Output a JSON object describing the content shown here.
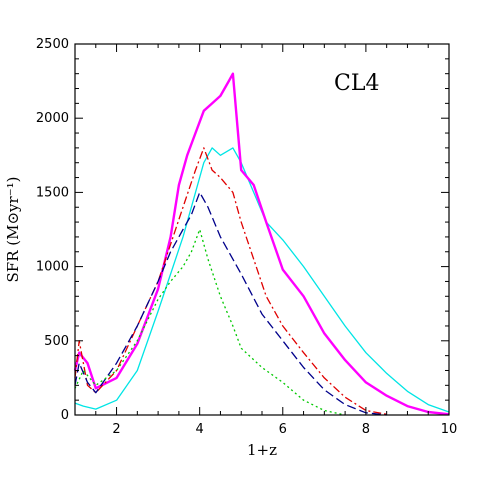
{
  "chart_data": {
    "type": "line",
    "title": "",
    "panel_label": "CL4",
    "xlabel": "1+z",
    "ylabel": "SFR (M⊙yr⁻¹)",
    "xlim": [
      1,
      10
    ],
    "ylim": [
      0,
      2500
    ],
    "xticks": [
      2,
      4,
      6,
      8,
      10
    ],
    "yticks": [
      0,
      500,
      1000,
      1500,
      2000,
      2500
    ],
    "grid": false,
    "legend": "none",
    "series": [
      {
        "color": "#00e5e5",
        "style": "solid",
        "x": [
          1.0,
          1.2,
          1.5,
          2.0,
          2.5,
          3.0,
          3.3,
          3.6,
          3.9,
          4.1,
          4.3,
          4.5,
          4.8,
          5.0,
          5.3,
          5.6,
          6.0,
          6.5,
          7.0,
          7.5,
          8.0,
          8.5,
          9.0,
          9.5,
          10.0
        ],
        "y": [
          80,
          60,
          40,
          100,
          300,
          700,
          950,
          1200,
          1500,
          1700,
          1800,
          1750,
          1800,
          1700,
          1500,
          1300,
          1180,
          1000,
          800,
          600,
          420,
          280,
          160,
          70,
          20
        ]
      },
      {
        "color": "#ff00ff",
        "style": "solid-thick",
        "x": [
          1.0,
          1.1,
          1.3,
          1.5,
          2.0,
          2.5,
          3.0,
          3.3,
          3.5,
          3.7,
          3.9,
          4.1,
          4.3,
          4.5,
          4.7,
          4.8,
          5.0,
          5.3,
          5.6,
          6.0,
          6.5,
          7.0,
          7.5,
          8.0,
          8.5,
          9.0,
          9.5,
          10.0
        ],
        "y": [
          300,
          420,
          350,
          180,
          250,
          480,
          850,
          1200,
          1550,
          1750,
          1900,
          2050,
          2100,
          2150,
          2250,
          2300,
          1650,
          1550,
          1300,
          980,
          800,
          550,
          370,
          220,
          130,
          60,
          20,
          5
        ]
      },
      {
        "color": "#e00000",
        "style": "dash-dot",
        "x": [
          1.0,
          1.1,
          1.3,
          1.5,
          2.0,
          2.5,
          3.0,
          3.3,
          3.6,
          3.9,
          4.1,
          4.3,
          4.5,
          4.8,
          5.0,
          5.3,
          5.6,
          6.0,
          6.5,
          7.0,
          7.5,
          8.0,
          8.5
        ],
        "y": [
          250,
          500,
          200,
          150,
          300,
          600,
          900,
          1150,
          1400,
          1650,
          1800,
          1650,
          1600,
          1500,
          1300,
          1050,
          800,
          600,
          420,
          250,
          120,
          30,
          5
        ]
      },
      {
        "color": "#00008b",
        "style": "dashed",
        "x": [
          1.0,
          1.1,
          1.3,
          1.5,
          2.0,
          2.5,
          3.0,
          3.3,
          3.6,
          3.8,
          4.0,
          4.2,
          4.5,
          4.8,
          5.0,
          5.5,
          6.0,
          6.5,
          7.0,
          7.5,
          8.0,
          8.5
        ],
        "y": [
          200,
          350,
          220,
          150,
          350,
          600,
          900,
          1100,
          1250,
          1350,
          1500,
          1400,
          1200,
          1050,
          950,
          680,
          500,
          320,
          170,
          70,
          15,
          0
        ]
      },
      {
        "color": "#00c800",
        "style": "dotted",
        "x": [
          1.0,
          1.2,
          1.5,
          2.0,
          2.5,
          3.0,
          3.3,
          3.6,
          3.8,
          4.0,
          4.2,
          4.5,
          4.8,
          5.0,
          5.5,
          6.0,
          6.5,
          7.0,
          7.5
        ],
        "y": [
          180,
          300,
          200,
          300,
          500,
          780,
          900,
          1000,
          1100,
          1250,
          1050,
          800,
          600,
          450,
          320,
          220,
          100,
          30,
          0
        ]
      }
    ]
  }
}
